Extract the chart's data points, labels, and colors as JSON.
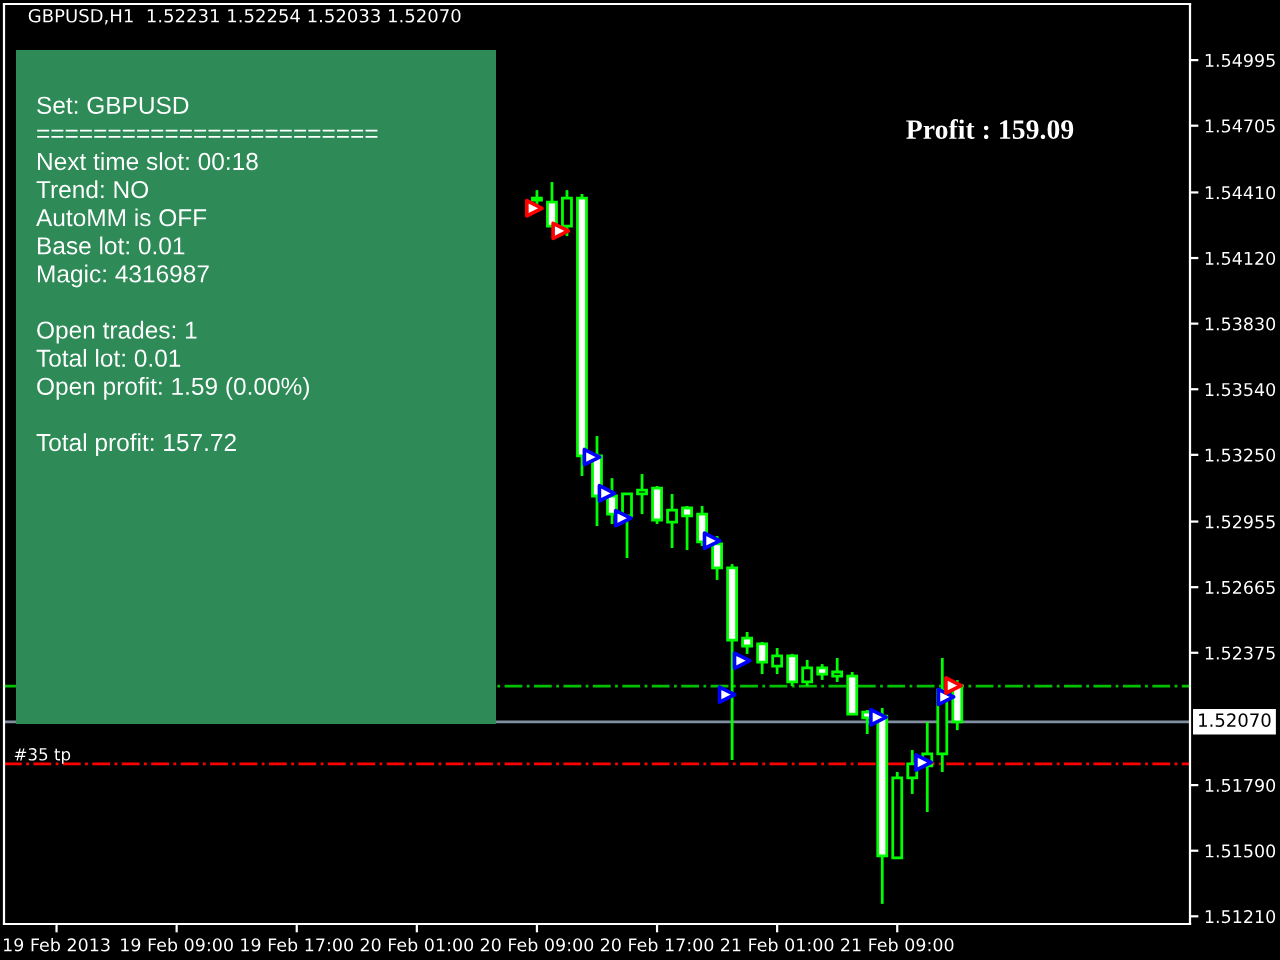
{
  "chart_data": {
    "type": "candlestick",
    "title": "GBPUSD,H1  1.52231 1.52254 1.52033 1.52070",
    "x": [
      "2013-02-20T09:00",
      "2013-02-20T10:00",
      "2013-02-20T11:00",
      "2013-02-20T12:00",
      "2013-02-20T13:00",
      "2013-02-20T14:00",
      "2013-02-20T15:00",
      "2013-02-20T16:00",
      "2013-02-20T17:00",
      "2013-02-20T18:00",
      "2013-02-20T19:00",
      "2013-02-20T20:00",
      "2013-02-20T21:00",
      "2013-02-20T22:00",
      "2013-02-20T23:00",
      "2013-02-21T00:00",
      "2013-02-21T01:00",
      "2013-02-21T02:00",
      "2013-02-21T03:00",
      "2013-02-21T04:00",
      "2013-02-21T05:00",
      "2013-02-21T06:00",
      "2013-02-21T07:00",
      "2013-02-21T08:00",
      "2013-02-21T09:00",
      "2013-02-21T10:00",
      "2013-02-21T11:00",
      "2013-02-21T12:00",
      "2013-02-21T13:00"
    ],
    "ohlc": [
      [
        1.54385,
        1.5442,
        1.5435,
        1.54376
      ],
      [
        1.54367,
        1.54456,
        1.54261,
        1.54261
      ],
      [
        1.54261,
        1.5442,
        1.54217,
        1.54385
      ],
      [
        1.54385,
        1.54403,
        1.53156,
        1.53245
      ],
      [
        1.53245,
        1.53333,
        1.52935,
        1.53068
      ],
      [
        1.53068,
        1.53147,
        1.52944,
        1.52988
      ],
      [
        1.5298,
        1.53077,
        1.52794,
        1.53077
      ],
      [
        1.53077,
        1.53165,
        1.52988,
        1.53094
      ],
      [
        1.53103,
        1.53112,
        1.52944,
        1.52962
      ],
      [
        1.52953,
        1.53077,
        1.52838,
        1.53006
      ],
      [
        1.53015,
        1.53024,
        1.52829,
        1.5298
      ],
      [
        1.52988,
        1.53024,
        1.52847,
        1.52865
      ],
      [
        1.52856,
        1.52891,
        1.52697,
        1.5275
      ],
      [
        1.5275,
        1.52767,
        1.51901,
        1.52431
      ],
      [
        1.5244,
        1.52467,
        1.5237,
        1.52405
      ],
      [
        1.52414,
        1.52423,
        1.52281,
        1.52334
      ],
      [
        1.52316,
        1.52396,
        1.52281,
        1.52361
      ],
      [
        1.52361,
        1.5237,
        1.52228,
        1.52246
      ],
      [
        1.52246,
        1.52343,
        1.52228,
        1.52308
      ],
      [
        1.52308,
        1.52325,
        1.52255,
        1.52281
      ],
      [
        1.52272,
        1.52352,
        1.52246,
        1.5229
      ],
      [
        1.52272,
        1.5229,
        1.52104,
        1.52104
      ],
      [
        1.52113,
        1.52122,
        1.52016,
        1.52087
      ],
      [
        1.52095,
        1.52131,
        1.51265,
        1.51477
      ],
      [
        1.51468,
        1.51848,
        1.51468,
        1.51822
      ],
      [
        1.51822,
        1.51945,
        1.51751,
        1.51884
      ],
      [
        1.51875,
        1.52069,
        1.51671,
        1.51928
      ],
      [
        1.51928,
        1.52352,
        1.51848,
        1.5221
      ],
      [
        1.52231,
        1.52254,
        1.52033,
        1.5207
      ]
    ],
    "series": [
      {
        "type": "scatter",
        "color": "#0000ff",
        "x": [
          "2013-02-20T12:40",
          "2013-02-20T13:40",
          "2013-02-20T14:45",
          "2013-02-20T20:40",
          "2013-02-20T22:40",
          "2013-02-20T21:40",
          "2013-02-21T07:45",
          "2013-02-21T10:45",
          "2013-02-21T12:15"
        ],
        "values": [
          1.5324,
          1.5308,
          1.5297,
          1.5287,
          1.5234,
          1.5219,
          1.5209,
          1.5189,
          1.5218
        ]
      },
      {
        "type": "scatter",
        "color": "#ff0000",
        "x": [
          "2013-02-20T08:50",
          "2013-02-20T10:35",
          "2013-02-21T12:45"
        ],
        "values": [
          1.5434,
          1.5424,
          1.5223
        ]
      }
    ],
    "marker": "triangle",
    "xlim": [
      "2013-02-18T21:30",
      "2013-02-22T04:30"
    ],
    "xticks": [
      {
        "value": "2013-02-19T01:00",
        "label": "19 Feb 2013"
      },
      {
        "value": "2013-02-19T09:00",
        "label": "19 Feb 09:00"
      },
      {
        "value": "2013-02-19T17:00",
        "label": "19 Feb 17:00"
      },
      {
        "value": "2013-02-20T01:00",
        "label": "20 Feb 01:00"
      },
      {
        "value": "2013-02-20T09:00",
        "label": "20 Feb 09:00"
      },
      {
        "value": "2013-02-20T17:00",
        "label": "20 Feb 17:00"
      },
      {
        "value": "2013-02-21T01:00",
        "label": "21 Feb 01:00"
      },
      {
        "value": "2013-02-21T09:00",
        "label": "21 Feb 09:00"
      }
    ],
    "ylim": [
      1.51176,
      1.55243
    ],
    "yticks": [
      {
        "value": 1.54995,
        "label": "1.54995"
      },
      {
        "value": 1.54705,
        "label": "1.54705"
      },
      {
        "value": 1.5441,
        "label": "1.54410"
      },
      {
        "value": 1.5412,
        "label": "1.54120"
      },
      {
        "value": 1.5383,
        "label": "1.53830"
      },
      {
        "value": 1.5354,
        "label": "1.53540"
      },
      {
        "value": 1.5325,
        "label": "1.53250"
      },
      {
        "value": 1.52955,
        "label": "1.52955"
      },
      {
        "value": 1.52665,
        "label": "1.52665"
      },
      {
        "value": 1.52375,
        "label": "1.52375"
      },
      {
        "value": 1.5179,
        "label": "1.51790"
      },
      {
        "value": 1.515,
        "label": "1.51500"
      },
      {
        "value": 1.5121,
        "label": "1.51210"
      }
    ],
    "ref_lines": [
      {
        "axis": "y",
        "value": 1.52228,
        "label": null,
        "color": "#00c000",
        "line_style": "dashdot"
      },
      {
        "axis": "y",
        "value": 1.5207,
        "label": "1.52070",
        "color": "#8090a0",
        "line_style": "solid"
      },
      {
        "axis": "y",
        "value": 1.51884,
        "label": "#35 tp",
        "color": "#ff0000",
        "line_style": "dashdot"
      }
    ],
    "annotations": [
      "Set: GBPUSD\n========================\nNext time slot: 00:18\nTrend: NO\nAutoMM is OFF\nBase lot: 0.01\nMagic: 4316987\n\nOpen trades: 1\nTotal lot: 0.01\nOpen profit: 1.59 (0.00%)\n\nTotal profit: 157.72",
      "Profit : 159.09"
    ],
    "grid": false,
    "legend": false
  }
}
